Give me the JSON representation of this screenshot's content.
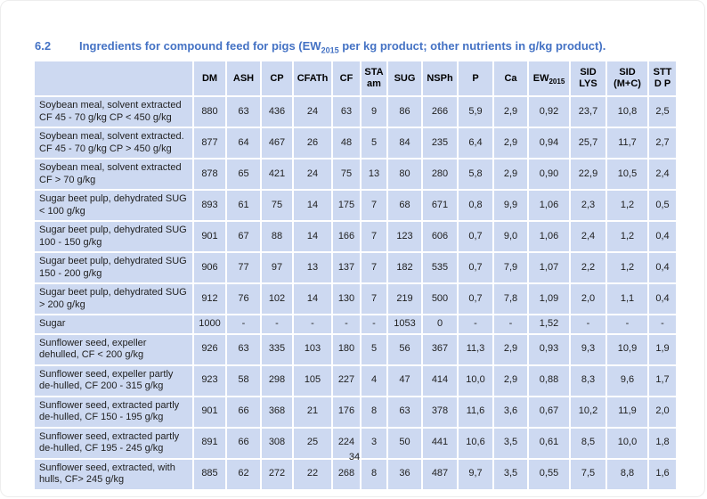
{
  "page": {
    "section_number": "6.2",
    "heading_prefix": "Ingredients for compound feed for pigs (EW",
    "heading_sub": "2015",
    "heading_suffix": " per kg product; other nutrients in g/kg product).",
    "page_number": "34"
  },
  "colors": {
    "heading_blue": "#4472c4",
    "cell_background": "#cdd9f1",
    "gridline": "#ffffff",
    "body_text": "#212121"
  },
  "table": {
    "columns": [
      {
        "label": ""
      },
      {
        "label": "DM"
      },
      {
        "label": "ASH"
      },
      {
        "label": "CP"
      },
      {
        "label": "CFATh"
      },
      {
        "label": "CF"
      },
      {
        "label": "STA",
        "label2": "am"
      },
      {
        "label": "SUG"
      },
      {
        "label": "NSPh"
      },
      {
        "label": "P"
      },
      {
        "label": "Ca"
      },
      {
        "label": "EW",
        "sub": "2015"
      },
      {
        "label": "SID",
        "label2": "LYS"
      },
      {
        "label": "SID",
        "label2": "(M+C)"
      },
      {
        "label": "STT",
        "label2": "D P"
      }
    ],
    "rows": [
      {
        "name": "Soybean meal, solvent extracted CF 45 - 70 g/kg CP < 450 g/kg",
        "values": [
          "880",
          "63",
          "436",
          "24",
          "63",
          "9",
          "86",
          "266",
          "5,9",
          "2,9",
          "0,92",
          "23,7",
          "10,8",
          "2,5"
        ]
      },
      {
        "name": "Soybean meal, solvent extracted. CF 45 - 70 g/kg CP > 450 g/kg",
        "values": [
          "877",
          "64",
          "467",
          "26",
          "48",
          "5",
          "84",
          "235",
          "6,4",
          "2,9",
          "0,94",
          "25,7",
          "11,7",
          "2,7"
        ]
      },
      {
        "name": "Soybean meal, solvent extracted CF > 70 g/kg",
        "values": [
          "878",
          "65",
          "421",
          "24",
          "75",
          "13",
          "80",
          "280",
          "5,8",
          "2,9",
          "0,90",
          "22,9",
          "10,5",
          "2,4"
        ]
      },
      {
        "name": "Sugar beet pulp, dehydrated SUG < 100 g/kg",
        "values": [
          "893",
          "61",
          "75",
          "14",
          "175",
          "7",
          "68",
          "671",
          "0,8",
          "9,9",
          "1,06",
          "2,3",
          "1,2",
          "0,5"
        ]
      },
      {
        "name": "Sugar beet pulp, dehydrated SUG 100 - 150 g/kg",
        "values": [
          "901",
          "67",
          "88",
          "14",
          "166",
          "7",
          "123",
          "606",
          "0,7",
          "9,0",
          "1,06",
          "2,4",
          "1,2",
          "0,4"
        ]
      },
      {
        "name": "Sugar beet pulp, dehydrated SUG 150 - 200 g/kg",
        "values": [
          "906",
          "77",
          "97",
          "13",
          "137",
          "7",
          "182",
          "535",
          "0,7",
          "7,9",
          "1,07",
          "2,2",
          "1,2",
          "0,4"
        ]
      },
      {
        "name": "Sugar beet pulp, dehydrated SUG > 200 g/kg",
        "values": [
          "912",
          "76",
          "102",
          "14",
          "130",
          "7",
          "219",
          "500",
          "0,7",
          "7,8",
          "1,09",
          "2,0",
          "1,1",
          "0,4"
        ]
      },
      {
        "name": "Sugar",
        "values": [
          "1000",
          "-",
          "-",
          "-",
          "-",
          "-",
          "1053",
          "0",
          "-",
          "-",
          "1,52",
          "-",
          "-",
          "-"
        ]
      },
      {
        "name": "Sunflower seed, expeller dehulled, CF < 200 g/kg",
        "values": [
          "926",
          "63",
          "335",
          "103",
          "180",
          "5",
          "56",
          "367",
          "11,3",
          "2,9",
          "0,93",
          "9,3",
          "10,9",
          "1,9"
        ]
      },
      {
        "name": "Sunflower seed, expeller partly de-hulled, CF 200 - 315 g/kg",
        "values": [
          "923",
          "58",
          "298",
          "105",
          "227",
          "4",
          "47",
          "414",
          "10,0",
          "2,9",
          "0,88",
          "8,3",
          "9,6",
          "1,7"
        ]
      },
      {
        "name": "Sunflower seed, extracted partly de-hulled, CF 150 - 195 g/kg",
        "values": [
          "901",
          "66",
          "368",
          "21",
          "176",
          "8",
          "63",
          "378",
          "11,6",
          "3,6",
          "0,67",
          "10,2",
          "11,9",
          "2,0"
        ]
      },
      {
        "name": "Sunflower seed, extracted partly de-hulled, CF 195 - 245 g/kg",
        "values": [
          "891",
          "66",
          "308",
          "25",
          "224",
          "3",
          "50",
          "441",
          "10,6",
          "3,5",
          "0,61",
          "8,5",
          "10,0",
          "1,8"
        ]
      },
      {
        "name": "Sunflower seed, extracted, with hulls, CF> 245 g/kg",
        "values": [
          "885",
          "62",
          "272",
          "22",
          "268",
          "8",
          "36",
          "487",
          "9,7",
          "3,5",
          "0,55",
          "7,5",
          "8,8",
          "1,6"
        ]
      }
    ]
  }
}
